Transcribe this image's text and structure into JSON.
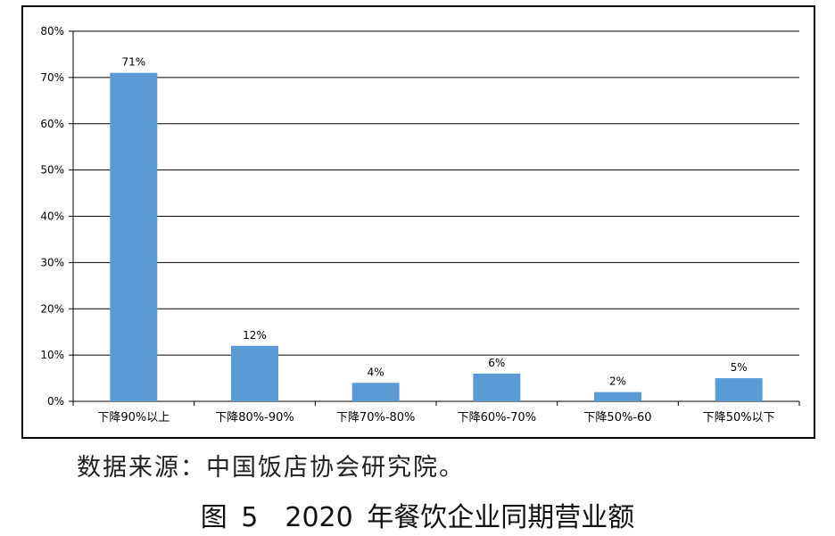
{
  "chart_data": {
    "type": "bar",
    "categories": [
      "下降90%以上",
      "下降80%-90%",
      "下降70%-80%",
      "下降60%-70%",
      "下降50%-60",
      "下降50%以下"
    ],
    "values": [
      71,
      12,
      4,
      6,
      2,
      5
    ],
    "data_labels": [
      "71%",
      "12%",
      "4%",
      "6%",
      "2%",
      "5%"
    ],
    "y_ticks": [
      "0%",
      "10%",
      "20%",
      "30%",
      "40%",
      "50%",
      "60%",
      "70%",
      "80%"
    ],
    "ylim": [
      0,
      80
    ],
    "grid": true,
    "bar_color": "#5b9bd5"
  },
  "source_note": "数据来源：中国饭店协会研究院。",
  "figure_caption": "图 5　2020 年餐饮企业同期营业额"
}
